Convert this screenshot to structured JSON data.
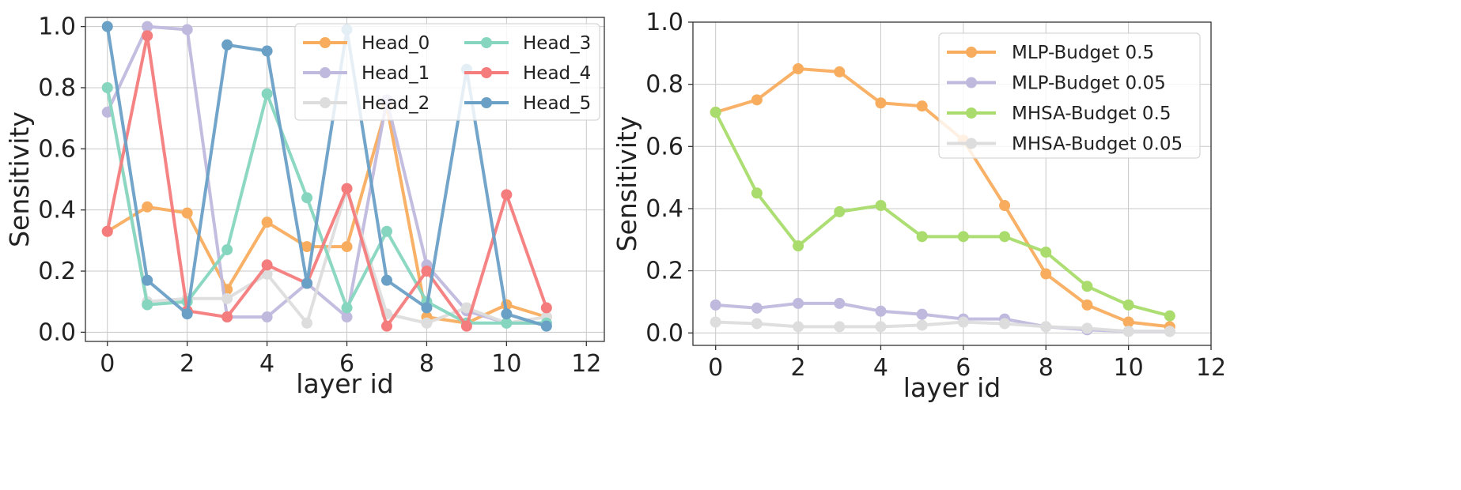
{
  "chart_data": [
    {
      "type": "line",
      "title": "",
      "xlabel": "layer id",
      "ylabel": "Sensitivity",
      "xlim": [
        -0.55,
        12.45
      ],
      "ylim": [
        -0.03,
        1.03
      ],
      "xticks": [
        0,
        2,
        4,
        6,
        8,
        10,
        12
      ],
      "xtick_labels": [
        "0",
        "2",
        "4",
        "6",
        "8",
        "10",
        "12"
      ],
      "yticks": [
        0.0,
        0.2,
        0.4,
        0.6,
        0.8,
        1.0
      ],
      "ytick_labels": [
        "0.0",
        "0.2",
        "0.4",
        "0.6",
        "0.8",
        "1.0"
      ],
      "grid": true,
      "legend": {
        "location": "top-right",
        "columns": 2
      },
      "x": [
        0,
        1,
        2,
        3,
        4,
        5,
        6,
        7,
        8,
        9,
        10,
        11
      ],
      "series": [
        {
          "name": "Head_0",
          "color": "#f8ad5e",
          "values": [
            0.33,
            0.41,
            0.39,
            0.14,
            0.36,
            0.28,
            0.28,
            0.74,
            0.05,
            0.03,
            0.09,
            0.05
          ]
        },
        {
          "name": "Head_1",
          "color": "#c0b9de",
          "values": [
            0.72,
            1.0,
            0.99,
            0.05,
            0.05,
            0.16,
            0.05,
            0.76,
            0.22,
            0.07,
            0.03,
            0.03
          ]
        },
        {
          "name": "Head_2",
          "color": "#dddddd",
          "values": [
            0.8,
            0.1,
            0.11,
            0.11,
            0.19,
            0.03,
            0.47,
            0.06,
            0.03,
            0.08,
            0.03,
            0.05
          ]
        },
        {
          "name": "Head_3",
          "color": "#86d6bf",
          "values": [
            0.8,
            0.09,
            0.1,
            0.27,
            0.78,
            0.44,
            0.08,
            0.33,
            0.1,
            0.03,
            0.03,
            0.03
          ]
        },
        {
          "name": "Head_4",
          "color": "#f47c7c",
          "values": [
            0.33,
            0.97,
            0.07,
            0.05,
            0.22,
            0.16,
            0.47,
            0.02,
            0.2,
            0.02,
            0.45,
            0.08
          ]
        },
        {
          "name": "Head_5",
          "color": "#6aa0c6",
          "values": [
            1.0,
            0.17,
            0.06,
            0.94,
            0.92,
            0.16,
            0.99,
            0.17,
            0.08,
            0.86,
            0.06,
            0.02
          ]
        }
      ]
    },
    {
      "type": "line",
      "title": "",
      "xlabel": "layer id",
      "ylabel": "Sensitivity",
      "xlim": [
        -0.55,
        12.0
      ],
      "ylim": [
        -0.04,
        1.0
      ],
      "xticks": [
        0,
        2,
        4,
        6,
        8,
        10,
        12
      ],
      "xtick_labels": [
        "0",
        "2",
        "4",
        "6",
        "8",
        "10",
        "12"
      ],
      "yticks": [
        0.0,
        0.2,
        0.4,
        0.6,
        0.8,
        1.0
      ],
      "ytick_labels": [
        "0.0",
        "0.2",
        "0.4",
        "0.6",
        "0.8",
        "1.0"
      ],
      "grid": true,
      "legend": {
        "location": "top-right",
        "columns": 1
      },
      "x": [
        0,
        1,
        2,
        3,
        4,
        5,
        6,
        7,
        8,
        9,
        10,
        11
      ],
      "series": [
        {
          "name": "MLP-Budget 0.5",
          "color": "#f8ad5e",
          "values": [
            0.71,
            0.75,
            0.85,
            0.84,
            0.74,
            0.73,
            0.62,
            0.41,
            0.19,
            0.09,
            0.035,
            0.02
          ]
        },
        {
          "name": "MLP-Budget 0.05",
          "color": "#c0b9de",
          "values": [
            0.09,
            0.08,
            0.095,
            0.095,
            0.07,
            0.06,
            0.045,
            0.045,
            0.02,
            0.01,
            0.005,
            0.005
          ]
        },
        {
          "name": "MHSA-Budget 0.5",
          "color": "#a9dc6c",
          "values": [
            0.71,
            0.45,
            0.28,
            0.39,
            0.41,
            0.31,
            0.31,
            0.31,
            0.26,
            0.15,
            0.09,
            0.055
          ]
        },
        {
          "name": "MHSA-Budget 0.05",
          "color": "#dddddd",
          "values": [
            0.035,
            0.03,
            0.02,
            0.02,
            0.02,
            0.025,
            0.035,
            0.03,
            0.02,
            0.015,
            0.005,
            0.005
          ]
        }
      ]
    }
  ]
}
